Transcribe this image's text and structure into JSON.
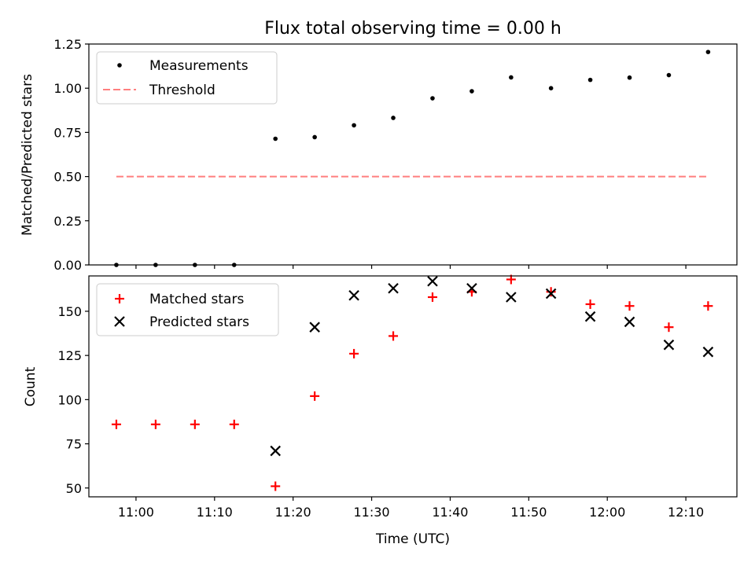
{
  "chart_data": [
    {
      "type": "scatter",
      "title": "Flux total observing time = 0.00 h",
      "xlabel": "",
      "ylabel": "Matched/Predicted stars",
      "ylim": [
        0,
        1.25
      ],
      "yticks": [
        "0.00",
        "0.25",
        "0.50",
        "0.75",
        "1.00",
        "1.25"
      ],
      "legend_position": "upper left",
      "series": [
        {
          "name": "Measurements",
          "marker": "dot",
          "color": "#000000",
          "x": [
            "10:57:30",
            "11:02:30",
            "11:07:30",
            "11:12:30",
            "11:17:45",
            "11:22:45",
            "11:27:45",
            "11:32:45",
            "11:37:45",
            "11:42:45",
            "11:47:45",
            "11:52:50",
            "11:57:50",
            "12:02:50",
            "12:07:50",
            "12:12:50"
          ],
          "y": [
            0.0,
            0.0,
            0.0,
            0.0,
            0.714,
            0.723,
            0.79,
            0.832,
            0.943,
            0.983,
            1.061,
            1.0,
            1.047,
            1.06,
            1.074,
            1.205
          ]
        },
        {
          "name": "Threshold",
          "marker": "dashed-line",
          "color": "#ff7f7f",
          "x": [
            "10:57:30",
            "12:12:50"
          ],
          "y": [
            0.5,
            0.5
          ]
        }
      ]
    },
    {
      "type": "scatter",
      "title": "",
      "xlabel": "Time (UTC)",
      "ylabel": "Count",
      "ylim": [
        45,
        170
      ],
      "xlim": [
        "10:54:00",
        "12:16:30"
      ],
      "xticks": [
        "11:00",
        "11:10",
        "11:20",
        "11:30",
        "11:40",
        "11:50",
        "12:00",
        "12:10"
      ],
      "yticks": [
        "50",
        "75",
        "100",
        "125",
        "150"
      ],
      "legend_position": "upper left",
      "series": [
        {
          "name": "Matched stars",
          "marker": "plus",
          "color": "#ff0000",
          "x": [
            "10:57:30",
            "11:02:30",
            "11:07:30",
            "11:12:30",
            "11:17:45",
            "11:22:45",
            "11:27:45",
            "11:32:45",
            "11:37:45",
            "11:42:45",
            "11:47:45",
            "11:52:50",
            "11:57:50",
            "12:02:50",
            "12:07:50",
            "12:12:50"
          ],
          "y": [
            86,
            86,
            86,
            86,
            51,
            102,
            126,
            136,
            158,
            161,
            168,
            161,
            154,
            153,
            141,
            153
          ]
        },
        {
          "name": "Predicted stars",
          "marker": "x",
          "color": "#000000",
          "x": [
            "11:17:45",
            "11:22:45",
            "11:27:45",
            "11:32:45",
            "11:37:45",
            "11:42:45",
            "11:47:45",
            "11:52:50",
            "11:57:50",
            "12:02:50",
            "12:07:50",
            "12:12:50"
          ],
          "y": [
            71,
            141,
            159,
            163,
            167,
            163,
            158,
            160,
            147,
            144,
            131,
            127
          ]
        }
      ]
    }
  ]
}
